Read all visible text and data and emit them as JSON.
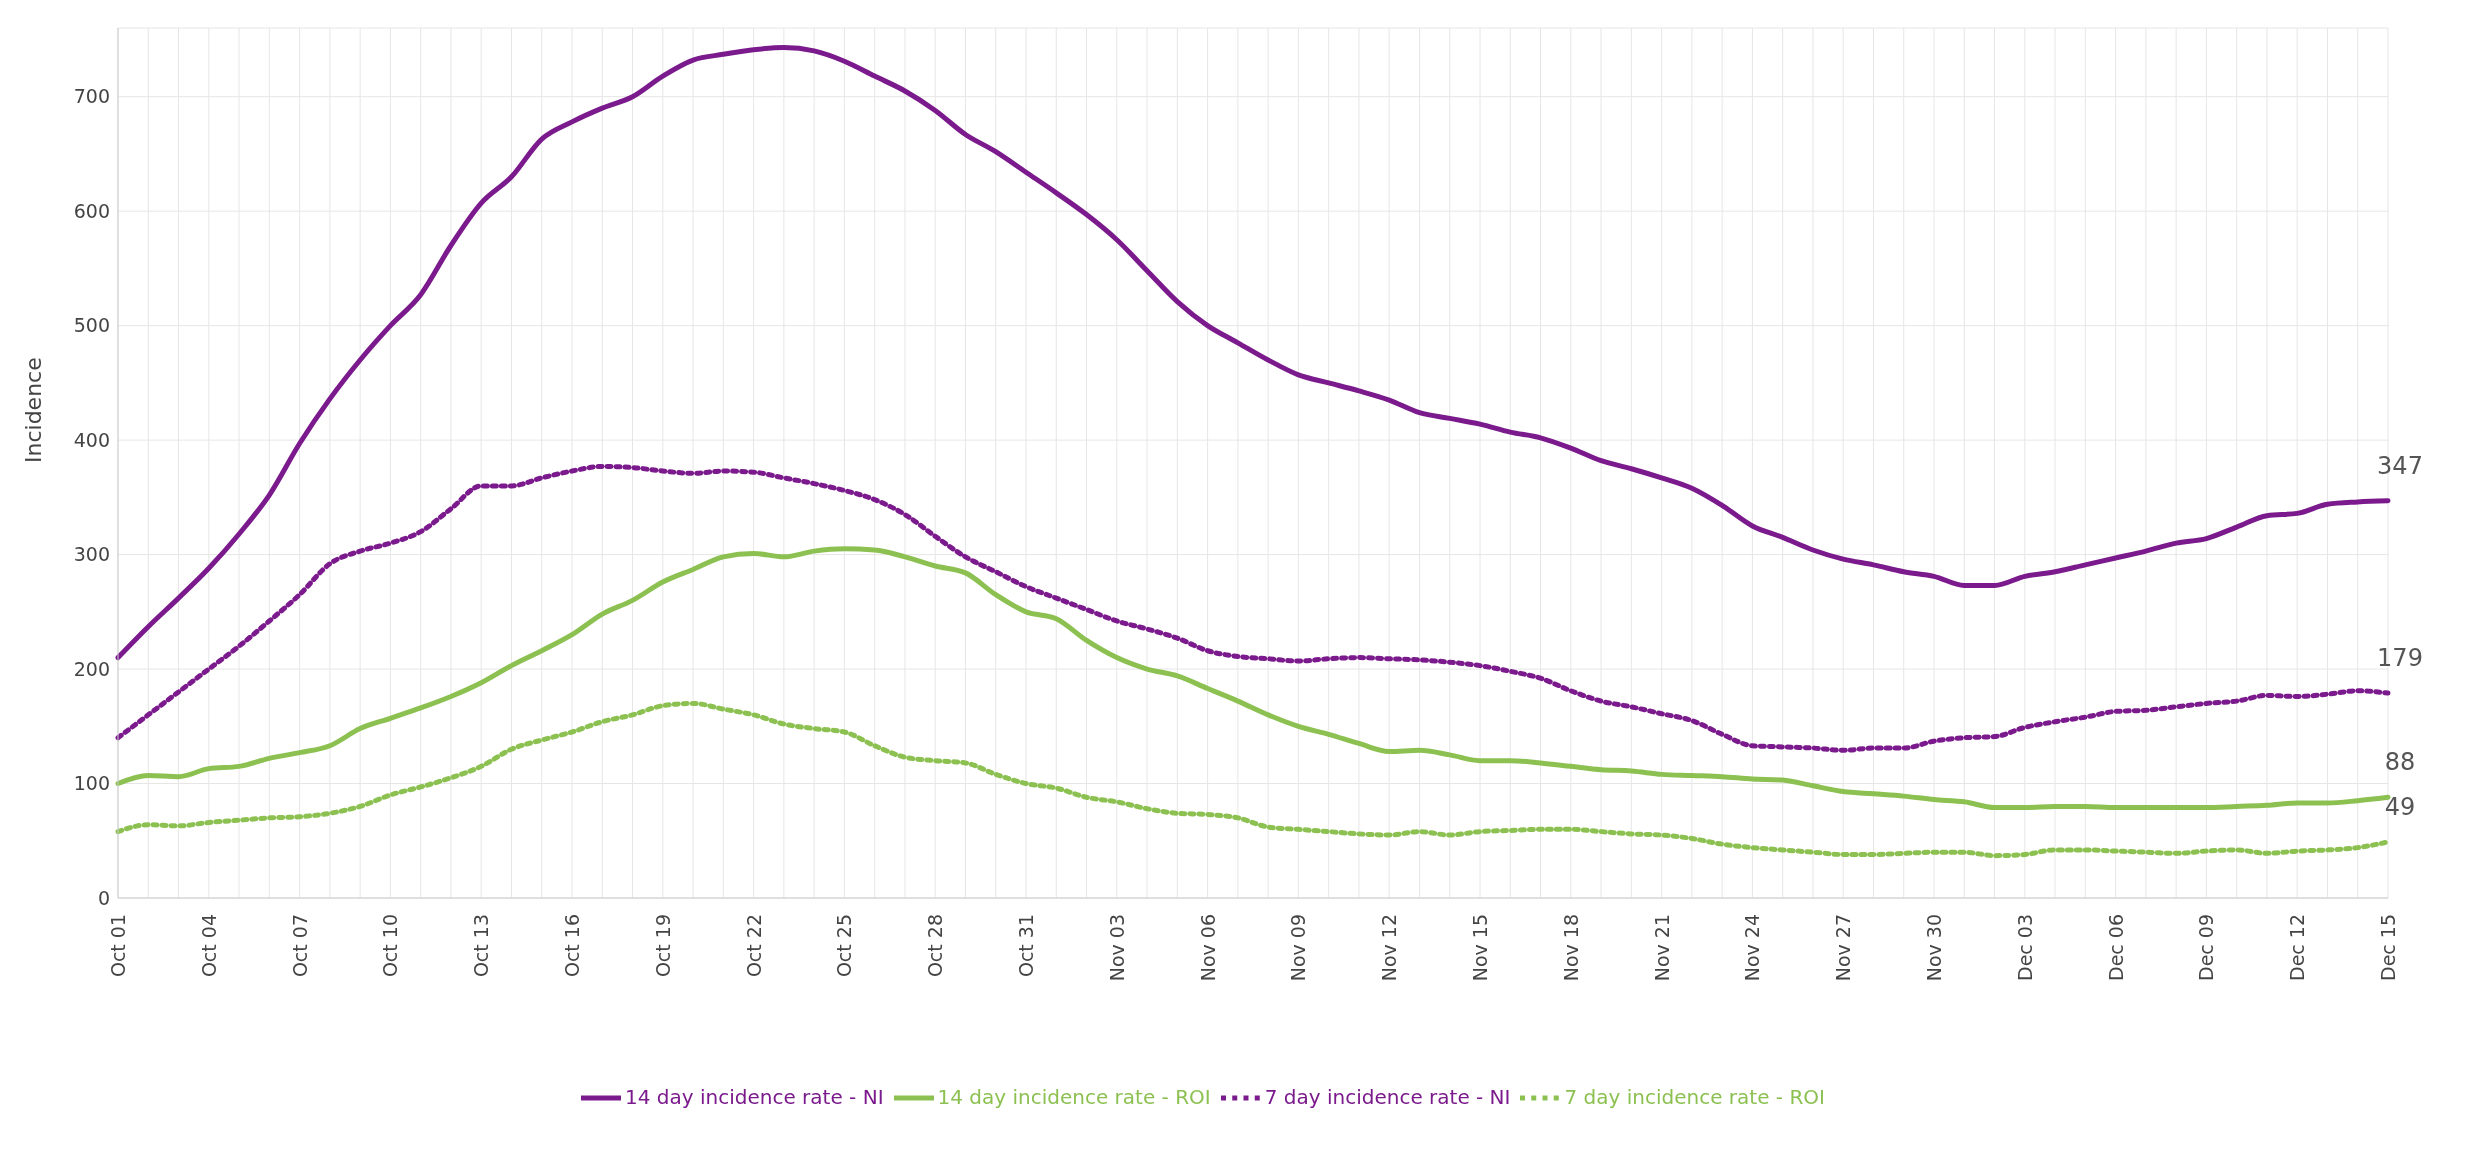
{
  "chart_data": {
    "type": "line",
    "ylabel": "Incidence",
    "ylim": [
      0,
      760
    ],
    "yticks": [
      0,
      100,
      200,
      300,
      400,
      500,
      600,
      700
    ],
    "grid": true,
    "legend": "bottom",
    "marker": "none",
    "categories": [
      "Oct 01",
      null,
      null,
      "Oct 04",
      null,
      null,
      "Oct 07",
      null,
      null,
      "Oct 10",
      null,
      null,
      "Oct 13",
      null,
      null,
      "Oct 16",
      null,
      null,
      "Oct 19",
      null,
      null,
      "Oct 22",
      null,
      null,
      "Oct 25",
      null,
      null,
      "Oct 28",
      null,
      null,
      "Oct 31",
      null,
      null,
      "Nov 03",
      null,
      null,
      "Nov 06",
      null,
      null,
      "Nov 09",
      null,
      null,
      "Nov 12",
      null,
      null,
      "Nov 15",
      null,
      null,
      "Nov 18",
      null,
      null,
      "Nov 21",
      null,
      null,
      "Nov 24",
      null,
      null,
      "Nov 27",
      null,
      null,
      "Nov 30",
      null,
      null,
      "Dec 03",
      null,
      null,
      "Dec 06",
      null,
      null,
      "Dec 09",
      null,
      null,
      "Dec 12",
      null,
      null,
      "Dec 15"
    ],
    "series": [
      {
        "name": "7 day incidence rate - ROI",
        "color": "#8cc152",
        "line_style": "dotted",
        "values": [
          58,
          64,
          63,
          66,
          68,
          70,
          71,
          74,
          80,
          90,
          97,
          105,
          115,
          130,
          138,
          145,
          154,
          160,
          168,
          170,
          165,
          160,
          152,
          148,
          145,
          133,
          123,
          120,
          118,
          108,
          100,
          96,
          88,
          84,
          78,
          74,
          73,
          70,
          62,
          60,
          58,
          56,
          55,
          58,
          55,
          58,
          59,
          60,
          60,
          58,
          56,
          55,
          52,
          47,
          44,
          42,
          40,
          38,
          38,
          39,
          40,
          40,
          37,
          38,
          42,
          42,
          41,
          40,
          39,
          41,
          42,
          39,
          41,
          42,
          44,
          49
        ]
      },
      {
        "name": "7 day incidence rate - NI",
        "color": "#7b1a8c",
        "line_style": "dotted",
        "values": [
          140,
          160,
          180,
          200,
          220,
          242,
          265,
          292,
          303,
          310,
          320,
          340,
          360,
          360,
          367,
          373,
          377,
          376,
          373,
          371,
          373,
          372,
          367,
          362,
          356,
          348,
          335,
          316,
          298,
          285,
          272,
          262,
          252,
          242,
          235,
          227,
          216,
          211,
          209,
          207,
          209,
          210,
          209,
          208,
          206,
          203,
          198,
          192,
          181,
          172,
          167,
          161,
          155,
          143,
          133,
          132,
          131,
          129,
          131,
          131,
          137,
          140,
          141,
          149,
          154,
          158,
          163,
          164,
          167,
          170,
          172,
          177,
          176,
          178,
          181,
          179
        ]
      },
      {
        "name": "14 day incidence rate - ROI",
        "color": "#8cc152",
        "line_style": "solid",
        "values": [
          100,
          107,
          106,
          113,
          115,
          122,
          127,
          133,
          148,
          157,
          166,
          176,
          188,
          203,
          216,
          230,
          248,
          260,
          276,
          287,
          298,
          301,
          298,
          303,
          305,
          304,
          298,
          290,
          284,
          265,
          250,
          244,
          225,
          210,
          200,
          194,
          183,
          172,
          160,
          150,
          143,
          135,
          128,
          129,
          125,
          120,
          120,
          118,
          115,
          112,
          111,
          108,
          107,
          106,
          104,
          103,
          98,
          93,
          91,
          89,
          86,
          84,
          79,
          79,
          80,
          80,
          79,
          79,
          79,
          79,
          80,
          81,
          83,
          83,
          85,
          88
        ]
      },
      {
        "name": "14 day incidence rate - NI",
        "color": "#7b1a8c",
        "line_style": "solid",
        "values": [
          210,
          237,
          262,
          288,
          318,
          352,
          397,
          436,
          470,
          500,
          527,
          570,
          607,
          630,
          663,
          678,
          690,
          700,
          718,
          732,
          737,
          741,
          743,
          740,
          731,
          718,
          705,
          688,
          667,
          652,
          634,
          616,
          597,
          575,
          548,
          521,
          500,
          485,
          470,
          457,
          450,
          443,
          435,
          424,
          419,
          414,
          407,
          402,
          393,
          382,
          375,
          367,
          358,
          343,
          325,
          315,
          304,
          296,
          291,
          285,
          281,
          273,
          273,
          281,
          285,
          291,
          297,
          303,
          310,
          314,
          324,
          334,
          336,
          344,
          346,
          347
        ]
      }
    ],
    "annotations": [
      {
        "text": "347",
        "x": "Dec 15",
        "y": 347
      },
      {
        "text": "179",
        "x": "Dec 15",
        "y": 179
      },
      {
        "text": "88",
        "x": "Dec 15",
        "y": 88
      },
      {
        "text": "49",
        "x": "Dec 15",
        "y": 49
      }
    ]
  }
}
